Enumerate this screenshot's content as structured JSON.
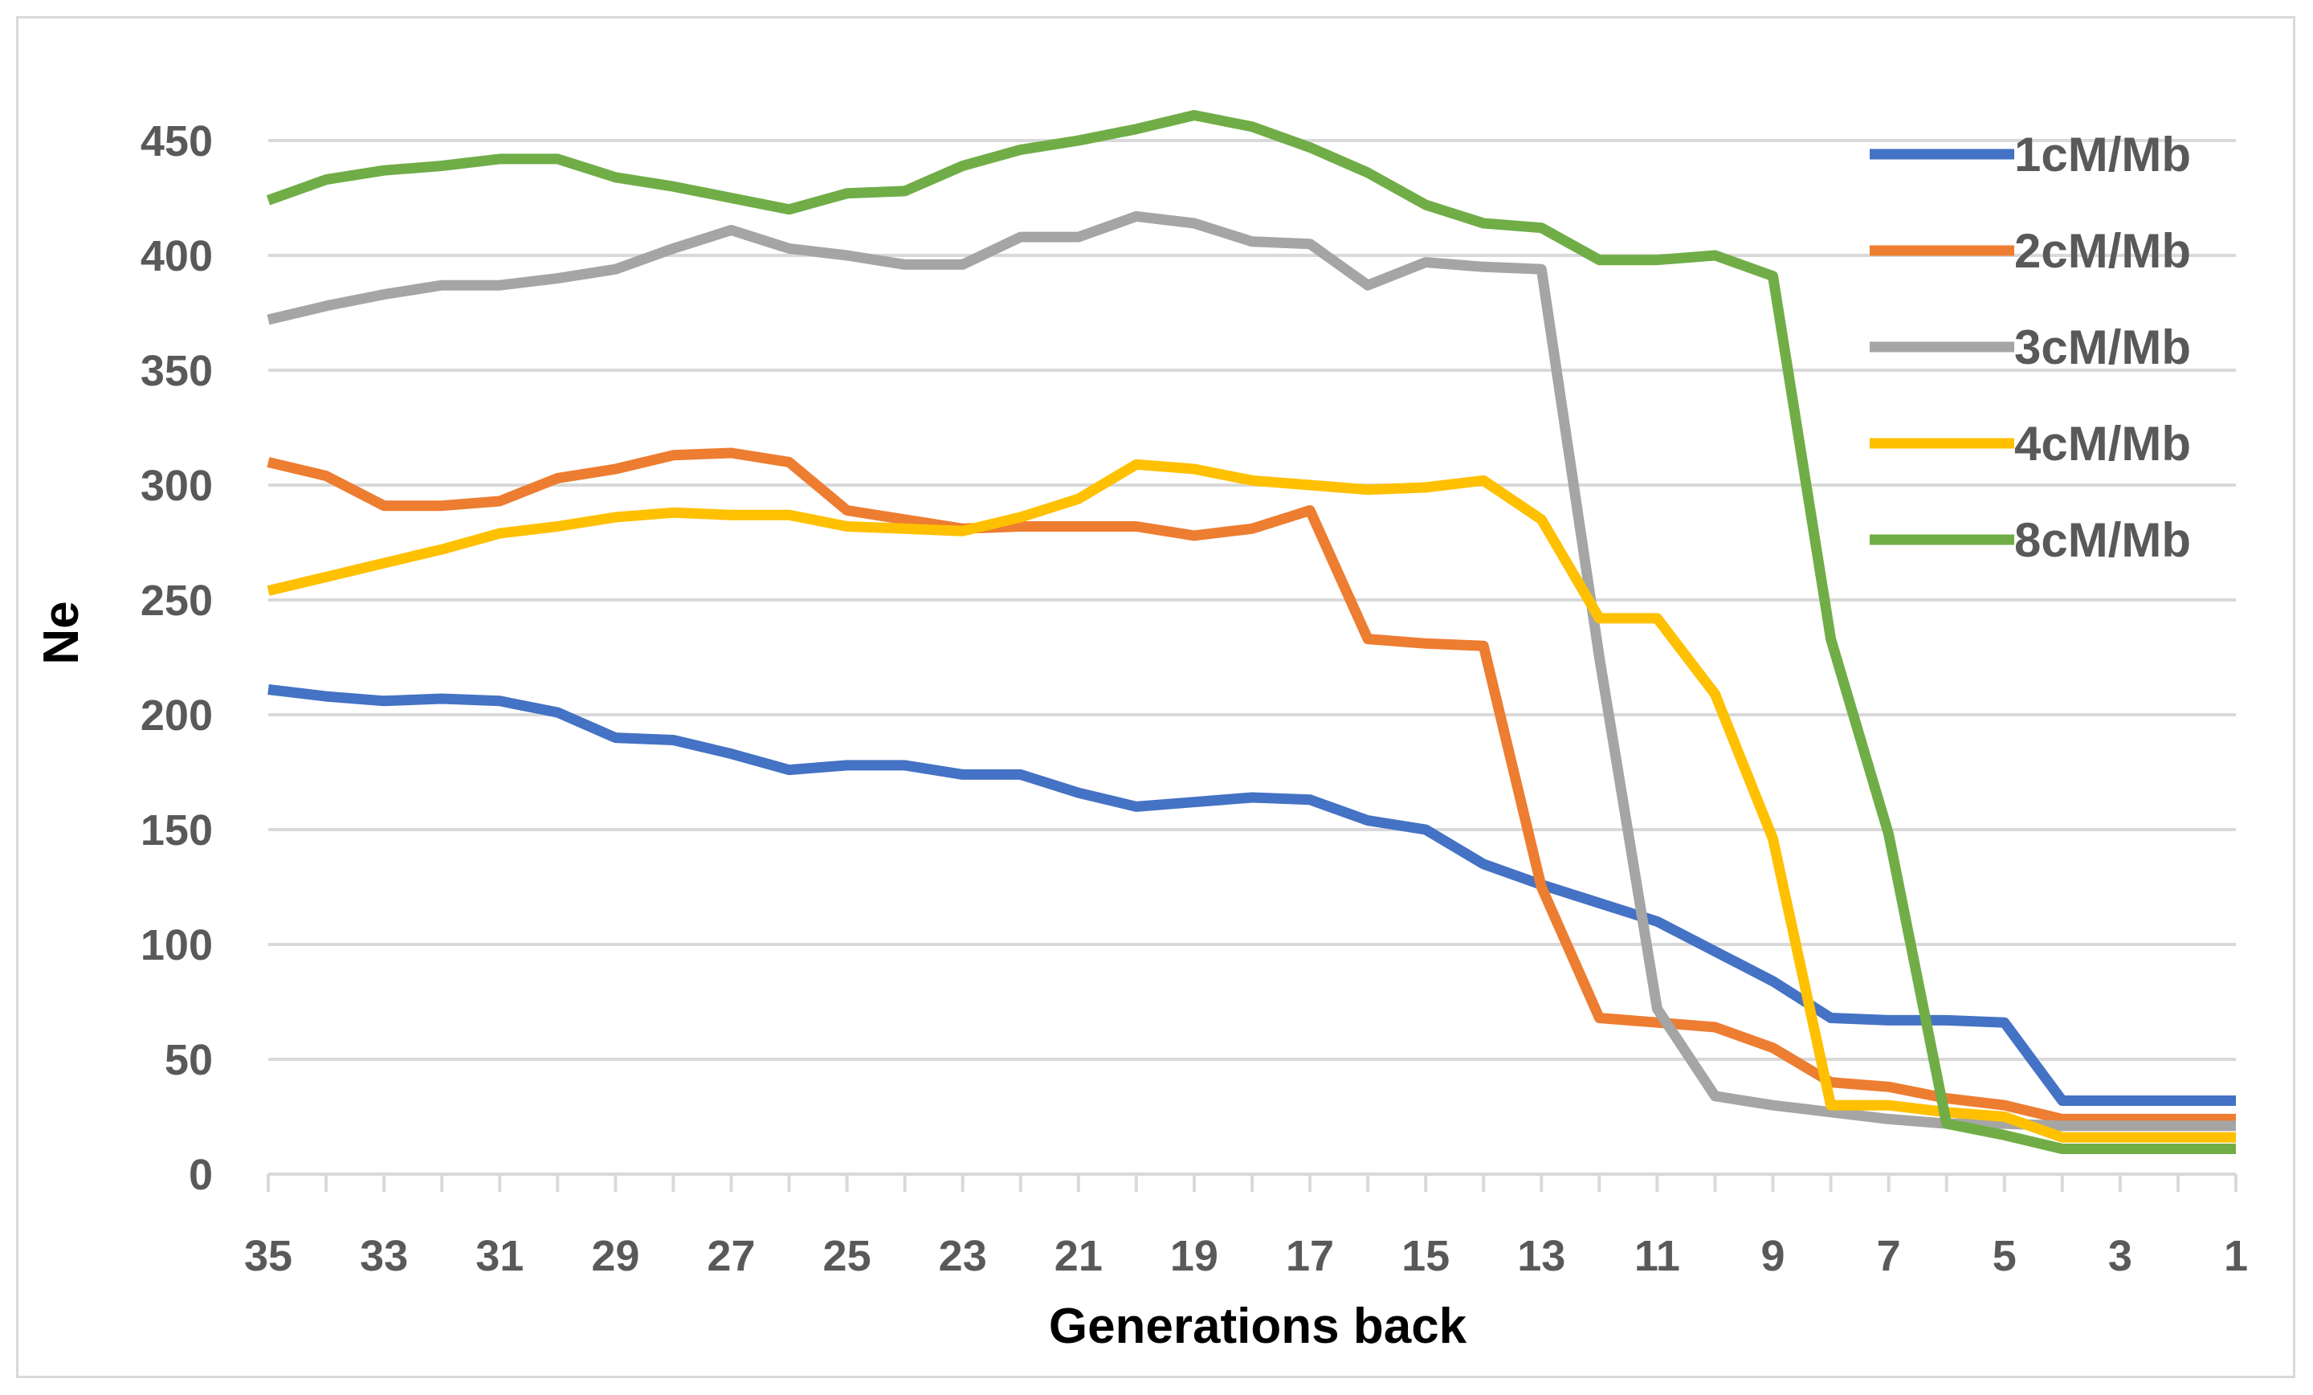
{
  "chart_data": {
    "type": "line",
    "title": "",
    "xlabel": "Generations back",
    "ylabel": "Ne",
    "ylim": [
      0,
      450
    ],
    "yticks": [
      0,
      50,
      100,
      150,
      200,
      250,
      300,
      350,
      400,
      450
    ],
    "x": [
      35,
      34,
      33,
      32,
      31,
      30,
      29,
      28,
      27,
      26,
      25,
      24,
      23,
      22,
      21,
      20,
      19,
      18,
      17,
      16,
      15,
      14,
      13,
      12,
      11,
      10,
      9,
      8,
      7,
      6,
      5,
      4,
      3,
      2,
      1
    ],
    "xtick_labels": [
      "35",
      "33",
      "31",
      "29",
      "27",
      "25",
      "23",
      "21",
      "19",
      "17",
      "15",
      "13",
      "11",
      "9",
      "7",
      "5",
      "3",
      "1"
    ],
    "grid": true,
    "legend_position": "right",
    "series": [
      {
        "name": "1cM/Mb",
        "color": "#4472c4",
        "values": [
          211,
          208,
          206,
          207,
          206,
          201,
          190,
          189,
          183,
          176,
          178,
          178,
          174,
          174,
          166,
          160,
          162,
          164,
          163,
          154,
          150,
          135,
          126,
          118,
          110,
          97,
          84,
          68,
          67,
          67,
          66,
          32,
          32,
          32,
          32
        ]
      },
      {
        "name": "2cM/Mb",
        "color": "#ed7d31",
        "values": [
          310,
          304,
          291,
          291,
          293,
          303,
          307,
          313,
          314,
          310,
          289,
          285,
          281,
          282,
          282,
          282,
          278,
          281,
          289,
          233,
          231,
          230,
          125,
          68,
          66,
          64,
          55,
          40,
          38,
          33,
          30,
          24,
          24,
          24,
          24
        ]
      },
      {
        "name": "3cM/Mb",
        "color": "#a5a5a5",
        "values": [
          372,
          378,
          383,
          387,
          387,
          390,
          394,
          403,
          411,
          403,
          400,
          396,
          396,
          408,
          408,
          417,
          414,
          406,
          405,
          387,
          397,
          395,
          394,
          225,
          72,
          34,
          30,
          27,
          24,
          22,
          22,
          21,
          21,
          21,
          21
        ]
      },
      {
        "name": "4cM/Mb",
        "color": "#ffc000",
        "values": [
          254,
          260,
          266,
          272,
          279,
          282,
          286,
          288,
          287,
          287,
          282,
          281,
          280,
          286,
          294,
          309,
          307,
          302,
          300,
          298,
          299,
          302,
          285,
          242,
          242,
          209,
          146,
          30,
          30,
          27,
          25,
          16,
          16,
          16,
          16
        ]
      },
      {
        "name": "8cM/Mb",
        "color": "#70ad47",
        "values": [
          424,
          433,
          437,
          439,
          442,
          442,
          434,
          430,
          425,
          420,
          427,
          428,
          439,
          446,
          450,
          455,
          461,
          456,
          447,
          436,
          422,
          414,
          412,
          398,
          398,
          400,
          391,
          233,
          148,
          22,
          17,
          11,
          11,
          11,
          11
        ]
      }
    ]
  }
}
